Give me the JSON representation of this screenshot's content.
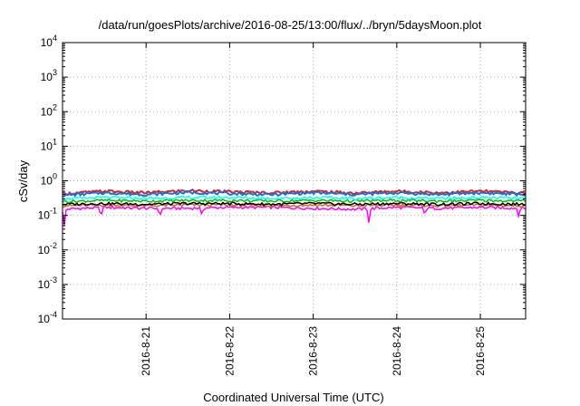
{
  "chart_data": {
    "type": "line",
    "title": "/data/run/goesPlots/archive/2016-08-25/13:00/flux/../bryn/5daysMoon.plot",
    "xlabel": "Coordinated Universal Time (UTC)",
    "ylabel": "cSv/day",
    "yscale": "log",
    "ylim": [
      0.0001,
      10000
    ],
    "xlim": [
      "2016-08-20T00:00",
      "2016-08-25T13:00"
    ],
    "grid": true,
    "y_ticks": [
      {
        "value": 0.0001,
        "base": "10",
        "exp": "-4"
      },
      {
        "value": 0.001,
        "base": "10",
        "exp": "-3"
      },
      {
        "value": 0.01,
        "base": "10",
        "exp": "-2"
      },
      {
        "value": 0.1,
        "base": "10",
        "exp": "-1"
      },
      {
        "value": 1,
        "base": "10",
        "exp": "0"
      },
      {
        "value": 10,
        "base": "10",
        "exp": "1"
      },
      {
        "value": 100,
        "base": "10",
        "exp": "2"
      },
      {
        "value": 1000,
        "base": "10",
        "exp": "3"
      },
      {
        "value": 10000,
        "base": "10",
        "exp": "4"
      }
    ],
    "x_ticks": [
      {
        "label": "2016-8-21",
        "x": "2016-08-21T00:00"
      },
      {
        "label": "2016-8-22",
        "x": "2016-08-22T00:00"
      },
      {
        "label": "2016-8-23",
        "x": "2016-08-23T00:00"
      },
      {
        "label": "2016-8-24",
        "x": "2016-08-24T00:00"
      },
      {
        "label": "2016-8-25",
        "x": "2016-08-25T00:00"
      }
    ],
    "series": [
      {
        "color": "#ff00ff",
        "x_hours": [
          0,
          12,
          24,
          36,
          48,
          60,
          72,
          84,
          96,
          108,
          120,
          133
        ],
        "values": [
          0.15,
          0.17,
          0.16,
          0.16,
          0.17,
          0.17,
          0.16,
          0.15,
          0.17,
          0.16,
          0.17,
          0.16
        ],
        "dips": [
          {
            "x_hour": 0.5,
            "value": 0.05
          },
          {
            "x_hour": 11,
            "value": 0.08
          },
          {
            "x_hour": 28,
            "value": 0.09
          },
          {
            "x_hour": 40,
            "value": 0.1
          },
          {
            "x_hour": 88,
            "value": 0.06
          },
          {
            "x_hour": 104,
            "value": 0.1
          },
          {
            "x_hour": 131,
            "value": 0.09
          }
        ]
      },
      {
        "color": "#d2691e",
        "x_hours": [
          0,
          12,
          24,
          36,
          48,
          60,
          72,
          84,
          96,
          108,
          120,
          133
        ],
        "values": [
          0.19,
          0.2,
          0.19,
          0.2,
          0.2,
          0.19,
          0.2,
          0.19,
          0.2,
          0.19,
          0.2,
          0.19
        ]
      },
      {
        "color": "#000000",
        "x_hours": [
          0,
          12,
          24,
          36,
          48,
          60,
          72,
          84,
          96,
          108,
          120,
          133
        ],
        "values": [
          0.21,
          0.22,
          0.21,
          0.22,
          0.22,
          0.21,
          0.22,
          0.21,
          0.22,
          0.21,
          0.22,
          0.21
        ]
      },
      {
        "color": "#00c000",
        "x_hours": [
          0,
          12,
          24,
          36,
          48,
          60,
          72,
          84,
          96,
          108,
          120,
          133
        ],
        "values": [
          0.25,
          0.27,
          0.26,
          0.27,
          0.27,
          0.26,
          0.27,
          0.26,
          0.27,
          0.26,
          0.27,
          0.26
        ]
      },
      {
        "color": "#00ffff",
        "x_hours": [
          0,
          12,
          24,
          36,
          48,
          60,
          72,
          84,
          96,
          108,
          120,
          133
        ],
        "values": [
          0.3,
          0.33,
          0.31,
          0.33,
          0.33,
          0.31,
          0.33,
          0.31,
          0.33,
          0.31,
          0.33,
          0.31
        ]
      },
      {
        "color": "#e02020",
        "x_hours": [
          0,
          12,
          24,
          36,
          48,
          60,
          72,
          84,
          96,
          108,
          120,
          133
        ],
        "values": [
          0.42,
          0.5,
          0.45,
          0.52,
          0.48,
          0.45,
          0.5,
          0.44,
          0.5,
          0.45,
          0.5,
          0.44
        ]
      },
      {
        "color": "#1e6ed8",
        "x_hours": [
          0,
          12,
          24,
          36,
          48,
          60,
          72,
          84,
          96,
          108,
          120,
          133
        ],
        "values": [
          0.38,
          0.45,
          0.4,
          0.46,
          0.43,
          0.4,
          0.45,
          0.4,
          0.45,
          0.4,
          0.45,
          0.4
        ]
      }
    ]
  }
}
